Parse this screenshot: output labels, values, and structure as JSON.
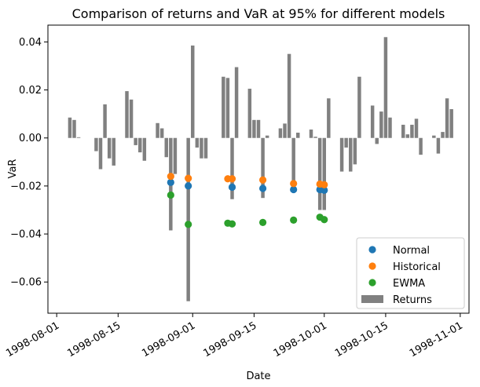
{
  "chart_data": {
    "type": "bar",
    "title": "Comparison of returns and VaR at 95% for different models",
    "xlabel": "Date",
    "ylabel": "VaR",
    "xlim": [
      "1998-07-30",
      "1998-11-03"
    ],
    "ylim": [
      -0.073,
      0.047
    ],
    "x_ticks": [
      "1998-08-01",
      "1998-08-15",
      "1998-09-01",
      "1998-09-15",
      "1998-10-01",
      "1998-10-15",
      "1998-11-01"
    ],
    "y_ticks": [
      -0.06,
      -0.04,
      -0.02,
      0.0,
      0.02,
      0.04
    ],
    "y_tick_labels": [
      "−0.06",
      "−0.04",
      "−0.02",
      "0.00",
      "0.02",
      "0.04"
    ],
    "grid": false,
    "legend_position": "lower right",
    "bar_series": {
      "name": "Returns",
      "color": "#808080",
      "points": [
        {
          "x": "1998-08-04",
          "y": 0.0085
        },
        {
          "x": "1998-08-05",
          "y": 0.0075
        },
        {
          "x": "1998-08-06",
          "y": 0.0003
        },
        {
          "x": "1998-08-10",
          "y": -0.0055
        },
        {
          "x": "1998-08-11",
          "y": -0.013
        },
        {
          "x": "1998-08-12",
          "y": 0.014
        },
        {
          "x": "1998-08-13",
          "y": -0.0085
        },
        {
          "x": "1998-08-14",
          "y": -0.0115
        },
        {
          "x": "1998-08-17",
          "y": 0.0195
        },
        {
          "x": "1998-08-18",
          "y": 0.016
        },
        {
          "x": "1998-08-19",
          "y": -0.003
        },
        {
          "x": "1998-08-20",
          "y": -0.006
        },
        {
          "x": "1998-08-21",
          "y": -0.0095
        },
        {
          "x": "1998-08-24",
          "y": 0.0062
        },
        {
          "x": "1998-08-25",
          "y": 0.004
        },
        {
          "x": "1998-08-26",
          "y": -0.008
        },
        {
          "x": "1998-08-27",
          "y": -0.0385
        },
        {
          "x": "1998-08-28",
          "y": -0.015
        },
        {
          "x": "1998-08-31",
          "y": -0.068
        },
        {
          "x": "1998-09-01",
          "y": 0.0385
        },
        {
          "x": "1998-09-02",
          "y": -0.004
        },
        {
          "x": "1998-09-03",
          "y": -0.0085
        },
        {
          "x": "1998-09-04",
          "y": -0.0085
        },
        {
          "x": "1998-09-08",
          "y": 0.0255
        },
        {
          "x": "1998-09-09",
          "y": 0.025
        },
        {
          "x": "1998-09-10",
          "y": -0.0255
        },
        {
          "x": "1998-09-11",
          "y": 0.0295
        },
        {
          "x": "1998-09-14",
          "y": 0.0205
        },
        {
          "x": "1998-09-15",
          "y": 0.0075
        },
        {
          "x": "1998-09-16",
          "y": 0.0075
        },
        {
          "x": "1998-09-17",
          "y": -0.025
        },
        {
          "x": "1998-09-18",
          "y": 0.001
        },
        {
          "x": "1998-09-21",
          "y": 0.004
        },
        {
          "x": "1998-09-22",
          "y": 0.006
        },
        {
          "x": "1998-09-23",
          "y": 0.035
        },
        {
          "x": "1998-09-24",
          "y": -0.021
        },
        {
          "x": "1998-09-25",
          "y": 0.0022
        },
        {
          "x": "1998-09-28",
          "y": 0.0035
        },
        {
          "x": "1998-09-29",
          "y": 0.0005
        },
        {
          "x": "1998-09-30",
          "y": -0.03
        },
        {
          "x": "1998-10-01",
          "y": -0.03
        },
        {
          "x": "1998-10-02",
          "y": 0.0165
        },
        {
          "x": "1998-10-05",
          "y": -0.014
        },
        {
          "x": "1998-10-06",
          "y": -0.004
        },
        {
          "x": "1998-10-07",
          "y": -0.014
        },
        {
          "x": "1998-10-08",
          "y": -0.011
        },
        {
          "x": "1998-10-09",
          "y": 0.0255
        },
        {
          "x": "1998-10-12",
          "y": 0.0135
        },
        {
          "x": "1998-10-13",
          "y": -0.0025
        },
        {
          "x": "1998-10-14",
          "y": 0.011
        },
        {
          "x": "1998-10-15",
          "y": 0.042
        },
        {
          "x": "1998-10-16",
          "y": 0.0085
        },
        {
          "x": "1998-10-19",
          "y": 0.0055
        },
        {
          "x": "1998-10-20",
          "y": 0.0015
        },
        {
          "x": "1998-10-21",
          "y": 0.0055
        },
        {
          "x": "1998-10-22",
          "y": 0.008
        },
        {
          "x": "1998-10-23",
          "y": -0.007
        },
        {
          "x": "1998-10-26",
          "y": 0.001
        },
        {
          "x": "1998-10-27",
          "y": -0.0065
        },
        {
          "x": "1998-10-28",
          "y": 0.0025
        },
        {
          "x": "1998-10-29",
          "y": 0.0165
        },
        {
          "x": "1998-10-30",
          "y": 0.012
        }
      ]
    },
    "point_series": [
      {
        "name": "Normal",
        "color": "#1f77b4",
        "points": [
          {
            "x": "1998-08-27",
            "y": -0.0185
          },
          {
            "x": "1998-08-31",
            "y": -0.02
          },
          {
            "x": "1998-09-10",
            "y": -0.0205
          },
          {
            "x": "1998-09-17",
            "y": -0.021
          },
          {
            "x": "1998-09-24",
            "y": -0.0215
          },
          {
            "x": "1998-09-30",
            "y": -0.0215
          },
          {
            "x": "1998-10-01",
            "y": -0.0218
          }
        ]
      },
      {
        "name": "Historical",
        "color": "#ff7f0e",
        "points": [
          {
            "x": "1998-08-27",
            "y": -0.016
          },
          {
            "x": "1998-08-31",
            "y": -0.0168
          },
          {
            "x": "1998-09-09",
            "y": -0.017
          },
          {
            "x": "1998-09-10",
            "y": -0.017
          },
          {
            "x": "1998-09-17",
            "y": -0.0175
          },
          {
            "x": "1998-09-24",
            "y": -0.019
          },
          {
            "x": "1998-09-30",
            "y": -0.0192
          },
          {
            "x": "1998-10-01",
            "y": -0.0195
          }
        ]
      },
      {
        "name": "EWMA",
        "color": "#2ca02c",
        "points": [
          {
            "x": "1998-08-27",
            "y": -0.0238
          },
          {
            "x": "1998-08-31",
            "y": -0.036
          },
          {
            "x": "1998-09-09",
            "y": -0.0355
          },
          {
            "x": "1998-09-10",
            "y": -0.0358
          },
          {
            "x": "1998-09-17",
            "y": -0.0352
          },
          {
            "x": "1998-09-24",
            "y": -0.0342
          },
          {
            "x": "1998-09-30",
            "y": -0.033
          },
          {
            "x": "1998-10-01",
            "y": -0.034
          }
        ]
      }
    ],
    "legend": [
      "Normal",
      "Historical",
      "EWMA",
      "Returns"
    ]
  }
}
